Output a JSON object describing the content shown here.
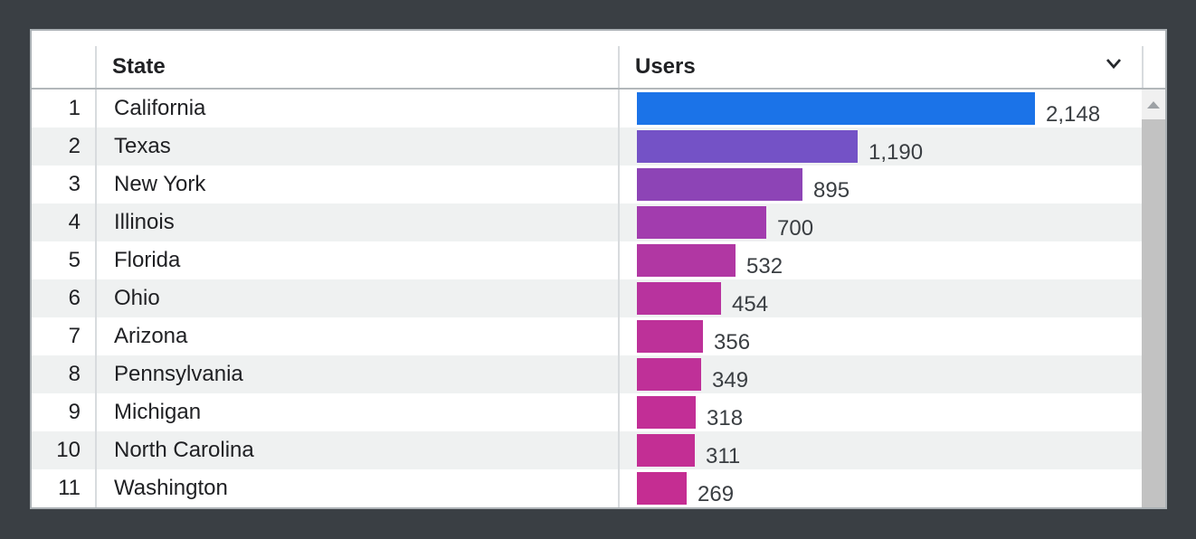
{
  "window": {
    "background_color": "#3a3f44",
    "card_background": "#ffffff"
  },
  "table": {
    "header": {
      "index_label": "",
      "state_label": "State",
      "users_label": "Users",
      "sort_icon": "chevron-down-icon"
    },
    "rows": [
      {
        "index": "1",
        "state": "California",
        "users_display": "2,148",
        "value": 2148,
        "bar_color": "#1b73e8"
      },
      {
        "index": "2",
        "state": "Texas",
        "users_display": "1,190",
        "value": 1190,
        "bar_color": "#7452c6"
      },
      {
        "index": "3",
        "state": "New York",
        "users_display": "895",
        "value": 895,
        "bar_color": "#8d44b6"
      },
      {
        "index": "4",
        "state": "Illinois",
        "users_display": "700",
        "value": 700,
        "bar_color": "#a23cae"
      },
      {
        "index": "5",
        "state": "Florida",
        "users_display": "532",
        "value": 532,
        "bar_color": "#b137a3"
      },
      {
        "index": "6",
        "state": "Ohio",
        "users_display": "454",
        "value": 454,
        "bar_color": "#b8339e"
      },
      {
        "index": "7",
        "state": "Arizona",
        "users_display": "356",
        "value": 356,
        "bar_color": "#bd3199"
      },
      {
        "index": "8",
        "state": "Pennsylvania",
        "users_display": "349",
        "value": 349,
        "bar_color": "#bf3098"
      },
      {
        "index": "9",
        "state": "Michigan",
        "users_display": "318",
        "value": 318,
        "bar_color": "#c22e96"
      },
      {
        "index": "10",
        "state": "North Carolina",
        "users_display": "311",
        "value": 311,
        "bar_color": "#c32e94"
      },
      {
        "index": "11",
        "state": "Washington",
        "users_display": "269",
        "value": 269,
        "bar_color": "#c52d92"
      }
    ],
    "scrollbar": {
      "up_icon": "triangle-up-icon",
      "thumb_color": "#c2c2c2",
      "button_background": "#f0f0f0"
    }
  },
  "chart_data": {
    "type": "bar",
    "orientation": "horizontal",
    "title": "",
    "xlabel": "Users",
    "ylabel": "State",
    "categories": [
      "California",
      "Texas",
      "New York",
      "Illinois",
      "Florida",
      "Ohio",
      "Arizona",
      "Pennsylvania",
      "Michigan",
      "North Carolina",
      "Washington"
    ],
    "values": [
      2148,
      1190,
      895,
      700,
      532,
      454,
      356,
      349,
      318,
      311,
      269
    ],
    "value_labels": [
      "2,148",
      "1,190",
      "895",
      "700",
      "532",
      "454",
      "356",
      "349",
      "318",
      "311",
      "269"
    ],
    "bar_colors": [
      "#1b73e8",
      "#7452c6",
      "#8d44b6",
      "#a23cae",
      "#b137a3",
      "#b8339e",
      "#bd3199",
      "#bf3098",
      "#c22e96",
      "#c32e94",
      "#c52d92"
    ],
    "xlim": [
      0,
      2148
    ],
    "grid": false,
    "legend": false
  }
}
